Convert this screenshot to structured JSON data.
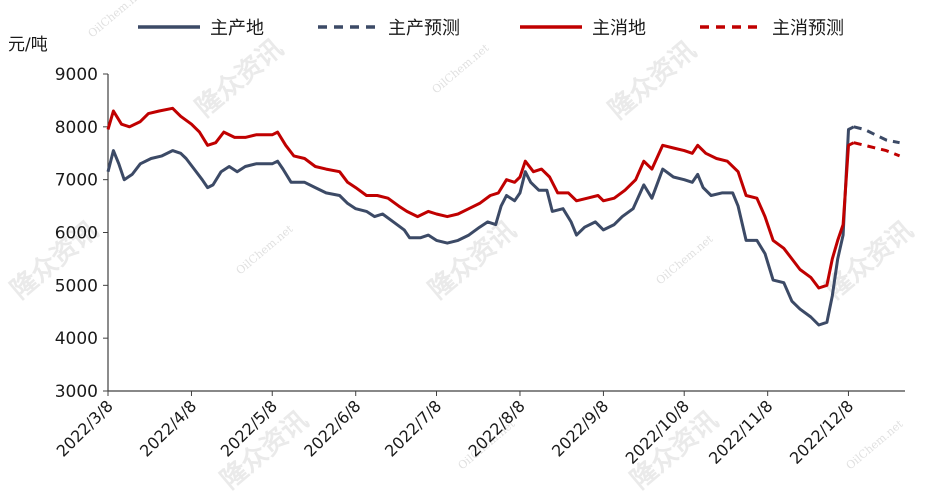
{
  "chart_data": {
    "type": "line",
    "ylabel": "元/吨",
    "ylim": [
      3000,
      9000
    ],
    "yticks": [
      3000,
      4000,
      5000,
      6000,
      7000,
      8000,
      9000
    ],
    "xlim": [
      "2022-03-08",
      "2022-12-29"
    ],
    "xticks": [
      "2022/3/8",
      "2022/4/8",
      "2022/5/8",
      "2022/6/8",
      "2022/7/8",
      "2022/8/8",
      "2022/9/8",
      "2022/10/8",
      "2022/11/8",
      "2022/12/8"
    ],
    "xtick_dates": [
      "2022-03-08",
      "2022-04-08",
      "2022-05-08",
      "2022-06-08",
      "2022-07-08",
      "2022-08-08",
      "2022-09-08",
      "2022-10-08",
      "2022-11-08",
      "2022-12-08"
    ],
    "legend_position": "top",
    "grid": false,
    "series": [
      {
        "name": "主产地",
        "color": "#3c4a66",
        "style": "solid",
        "points": [
          [
            "2022-03-08",
            7150
          ],
          [
            "2022-03-10",
            7550
          ],
          [
            "2022-03-12",
            7300
          ],
          [
            "2022-03-14",
            7000
          ],
          [
            "2022-03-17",
            7100
          ],
          [
            "2022-03-20",
            7300
          ],
          [
            "2022-03-24",
            7400
          ],
          [
            "2022-03-28",
            7450
          ],
          [
            "2022-04-01",
            7550
          ],
          [
            "2022-04-04",
            7500
          ],
          [
            "2022-04-06",
            7400
          ],
          [
            "2022-04-09",
            7200
          ],
          [
            "2022-04-12",
            7000
          ],
          [
            "2022-04-14",
            6850
          ],
          [
            "2022-04-16",
            6900
          ],
          [
            "2022-04-19",
            7150
          ],
          [
            "2022-04-22",
            7250
          ],
          [
            "2022-04-25",
            7150
          ],
          [
            "2022-04-28",
            7250
          ],
          [
            "2022-05-02",
            7300
          ],
          [
            "2022-05-08",
            7300
          ],
          [
            "2022-05-10",
            7350
          ],
          [
            "2022-05-12",
            7200
          ],
          [
            "2022-05-15",
            6950
          ],
          [
            "2022-05-20",
            6950
          ],
          [
            "2022-05-24",
            6850
          ],
          [
            "2022-05-28",
            6750
          ],
          [
            "2022-06-02",
            6700
          ],
          [
            "2022-06-05",
            6550
          ],
          [
            "2022-06-08",
            6450
          ],
          [
            "2022-06-12",
            6400
          ],
          [
            "2022-06-15",
            6300
          ],
          [
            "2022-06-18",
            6350
          ],
          [
            "2022-06-22",
            6200
          ],
          [
            "2022-06-26",
            6050
          ],
          [
            "2022-06-28",
            5900
          ],
          [
            "2022-07-02",
            5900
          ],
          [
            "2022-07-05",
            5950
          ],
          [
            "2022-07-08",
            5850
          ],
          [
            "2022-07-12",
            5800
          ],
          [
            "2022-07-16",
            5850
          ],
          [
            "2022-07-20",
            5950
          ],
          [
            "2022-07-24",
            6100
          ],
          [
            "2022-07-27",
            6200
          ],
          [
            "2022-07-30",
            6150
          ],
          [
            "2022-08-01",
            6500
          ],
          [
            "2022-08-03",
            6700
          ],
          [
            "2022-08-06",
            6600
          ],
          [
            "2022-08-08",
            6750
          ],
          [
            "2022-08-10",
            7150
          ],
          [
            "2022-08-12",
            6950
          ],
          [
            "2022-08-15",
            6800
          ],
          [
            "2022-08-18",
            6800
          ],
          [
            "2022-08-20",
            6400
          ],
          [
            "2022-08-24",
            6450
          ],
          [
            "2022-08-27",
            6200
          ],
          [
            "2022-08-29",
            5950
          ],
          [
            "2022-09-01",
            6100
          ],
          [
            "2022-09-05",
            6200
          ],
          [
            "2022-09-08",
            6050
          ],
          [
            "2022-09-12",
            6150
          ],
          [
            "2022-09-15",
            6300
          ],
          [
            "2022-09-19",
            6450
          ],
          [
            "2022-09-23",
            6900
          ],
          [
            "2022-09-26",
            6650
          ],
          [
            "2022-09-30",
            7200
          ],
          [
            "2022-10-04",
            7050
          ],
          [
            "2022-10-08",
            7000
          ],
          [
            "2022-10-11",
            6950
          ],
          [
            "2022-10-13",
            7100
          ],
          [
            "2022-10-15",
            6850
          ],
          [
            "2022-10-18",
            6700
          ],
          [
            "2022-10-22",
            6750
          ],
          [
            "2022-10-26",
            6750
          ],
          [
            "2022-10-28",
            6500
          ],
          [
            "2022-10-31",
            5850
          ],
          [
            "2022-11-04",
            5850
          ],
          [
            "2022-11-07",
            5600
          ],
          [
            "2022-11-10",
            5100
          ],
          [
            "2022-11-14",
            5050
          ],
          [
            "2022-11-17",
            4700
          ],
          [
            "2022-11-20",
            4550
          ],
          [
            "2022-11-24",
            4400
          ],
          [
            "2022-11-27",
            4250
          ],
          [
            "2022-11-30",
            4300
          ],
          [
            "2022-12-02",
            4800
          ],
          [
            "2022-12-04",
            5500
          ],
          [
            "2022-12-06",
            5950
          ],
          [
            "2022-12-08",
            7950
          ],
          [
            "2022-12-10",
            8000
          ]
        ]
      },
      {
        "name": "主产预测",
        "color": "#3c4a66",
        "style": "dashed",
        "points": [
          [
            "2022-12-10",
            8000
          ],
          [
            "2022-12-14",
            7950
          ],
          [
            "2022-12-18",
            7850
          ],
          [
            "2022-12-22",
            7750
          ],
          [
            "2022-12-27",
            7700
          ]
        ]
      },
      {
        "name": "主消地",
        "color": "#c00000",
        "style": "solid",
        "points": [
          [
            "2022-03-08",
            7950
          ],
          [
            "2022-03-10",
            8300
          ],
          [
            "2022-03-13",
            8050
          ],
          [
            "2022-03-16",
            8000
          ],
          [
            "2022-03-20",
            8100
          ],
          [
            "2022-03-23",
            8250
          ],
          [
            "2022-03-27",
            8300
          ],
          [
            "2022-04-01",
            8350
          ],
          [
            "2022-04-04",
            8200
          ],
          [
            "2022-04-08",
            8050
          ],
          [
            "2022-04-11",
            7900
          ],
          [
            "2022-04-14",
            7650
          ],
          [
            "2022-04-17",
            7700
          ],
          [
            "2022-04-20",
            7900
          ],
          [
            "2022-04-24",
            7800
          ],
          [
            "2022-04-28",
            7800
          ],
          [
            "2022-05-02",
            7850
          ],
          [
            "2022-05-08",
            7850
          ],
          [
            "2022-05-10",
            7900
          ],
          [
            "2022-05-13",
            7650
          ],
          [
            "2022-05-16",
            7450
          ],
          [
            "2022-05-20",
            7400
          ],
          [
            "2022-05-24",
            7250
          ],
          [
            "2022-05-28",
            7200
          ],
          [
            "2022-06-02",
            7150
          ],
          [
            "2022-06-05",
            6950
          ],
          [
            "2022-06-08",
            6850
          ],
          [
            "2022-06-12",
            6700
          ],
          [
            "2022-06-16",
            6700
          ],
          [
            "2022-06-20",
            6650
          ],
          [
            "2022-06-24",
            6500
          ],
          [
            "2022-06-27",
            6400
          ],
          [
            "2022-07-01",
            6300
          ],
          [
            "2022-07-05",
            6400
          ],
          [
            "2022-07-08",
            6350
          ],
          [
            "2022-07-12",
            6300
          ],
          [
            "2022-07-16",
            6350
          ],
          [
            "2022-07-20",
            6450
          ],
          [
            "2022-07-24",
            6550
          ],
          [
            "2022-07-28",
            6700
          ],
          [
            "2022-07-31",
            6750
          ],
          [
            "2022-08-03",
            7000
          ],
          [
            "2022-08-06",
            6950
          ],
          [
            "2022-08-08",
            7050
          ],
          [
            "2022-08-10",
            7350
          ],
          [
            "2022-08-13",
            7150
          ],
          [
            "2022-08-16",
            7200
          ],
          [
            "2022-08-19",
            7050
          ],
          [
            "2022-08-22",
            6750
          ],
          [
            "2022-08-26",
            6750
          ],
          [
            "2022-08-29",
            6600
          ],
          [
            "2022-09-02",
            6650
          ],
          [
            "2022-09-06",
            6700
          ],
          [
            "2022-09-08",
            6600
          ],
          [
            "2022-09-12",
            6650
          ],
          [
            "2022-09-16",
            6800
          ],
          [
            "2022-09-20",
            7000
          ],
          [
            "2022-09-23",
            7350
          ],
          [
            "2022-09-26",
            7200
          ],
          [
            "2022-09-30",
            7650
          ],
          [
            "2022-10-04",
            7600
          ],
          [
            "2022-10-08",
            7550
          ],
          [
            "2022-10-11",
            7500
          ],
          [
            "2022-10-13",
            7650
          ],
          [
            "2022-10-16",
            7500
          ],
          [
            "2022-10-20",
            7400
          ],
          [
            "2022-10-24",
            7350
          ],
          [
            "2022-10-28",
            7150
          ],
          [
            "2022-10-31",
            6700
          ],
          [
            "2022-11-04",
            6650
          ],
          [
            "2022-11-07",
            6300
          ],
          [
            "2022-11-10",
            5850
          ],
          [
            "2022-11-14",
            5700
          ],
          [
            "2022-11-17",
            5500
          ],
          [
            "2022-11-20",
            5300
          ],
          [
            "2022-11-24",
            5150
          ],
          [
            "2022-11-27",
            4950
          ],
          [
            "2022-11-30",
            5000
          ],
          [
            "2022-12-02",
            5500
          ],
          [
            "2022-12-04",
            5850
          ],
          [
            "2022-12-06",
            6150
          ],
          [
            "2022-12-08",
            7650
          ],
          [
            "2022-12-10",
            7700
          ]
        ]
      },
      {
        "name": "主消预测",
        "color": "#c00000",
        "style": "dashed",
        "points": [
          [
            "2022-12-10",
            7700
          ],
          [
            "2022-12-14",
            7650
          ],
          [
            "2022-12-18",
            7600
          ],
          [
            "2022-12-22",
            7550
          ],
          [
            "2022-12-27",
            7450
          ]
        ]
      }
    ]
  },
  "watermark": {
    "cn": "隆众资讯",
    "en": "OilChem.net"
  }
}
